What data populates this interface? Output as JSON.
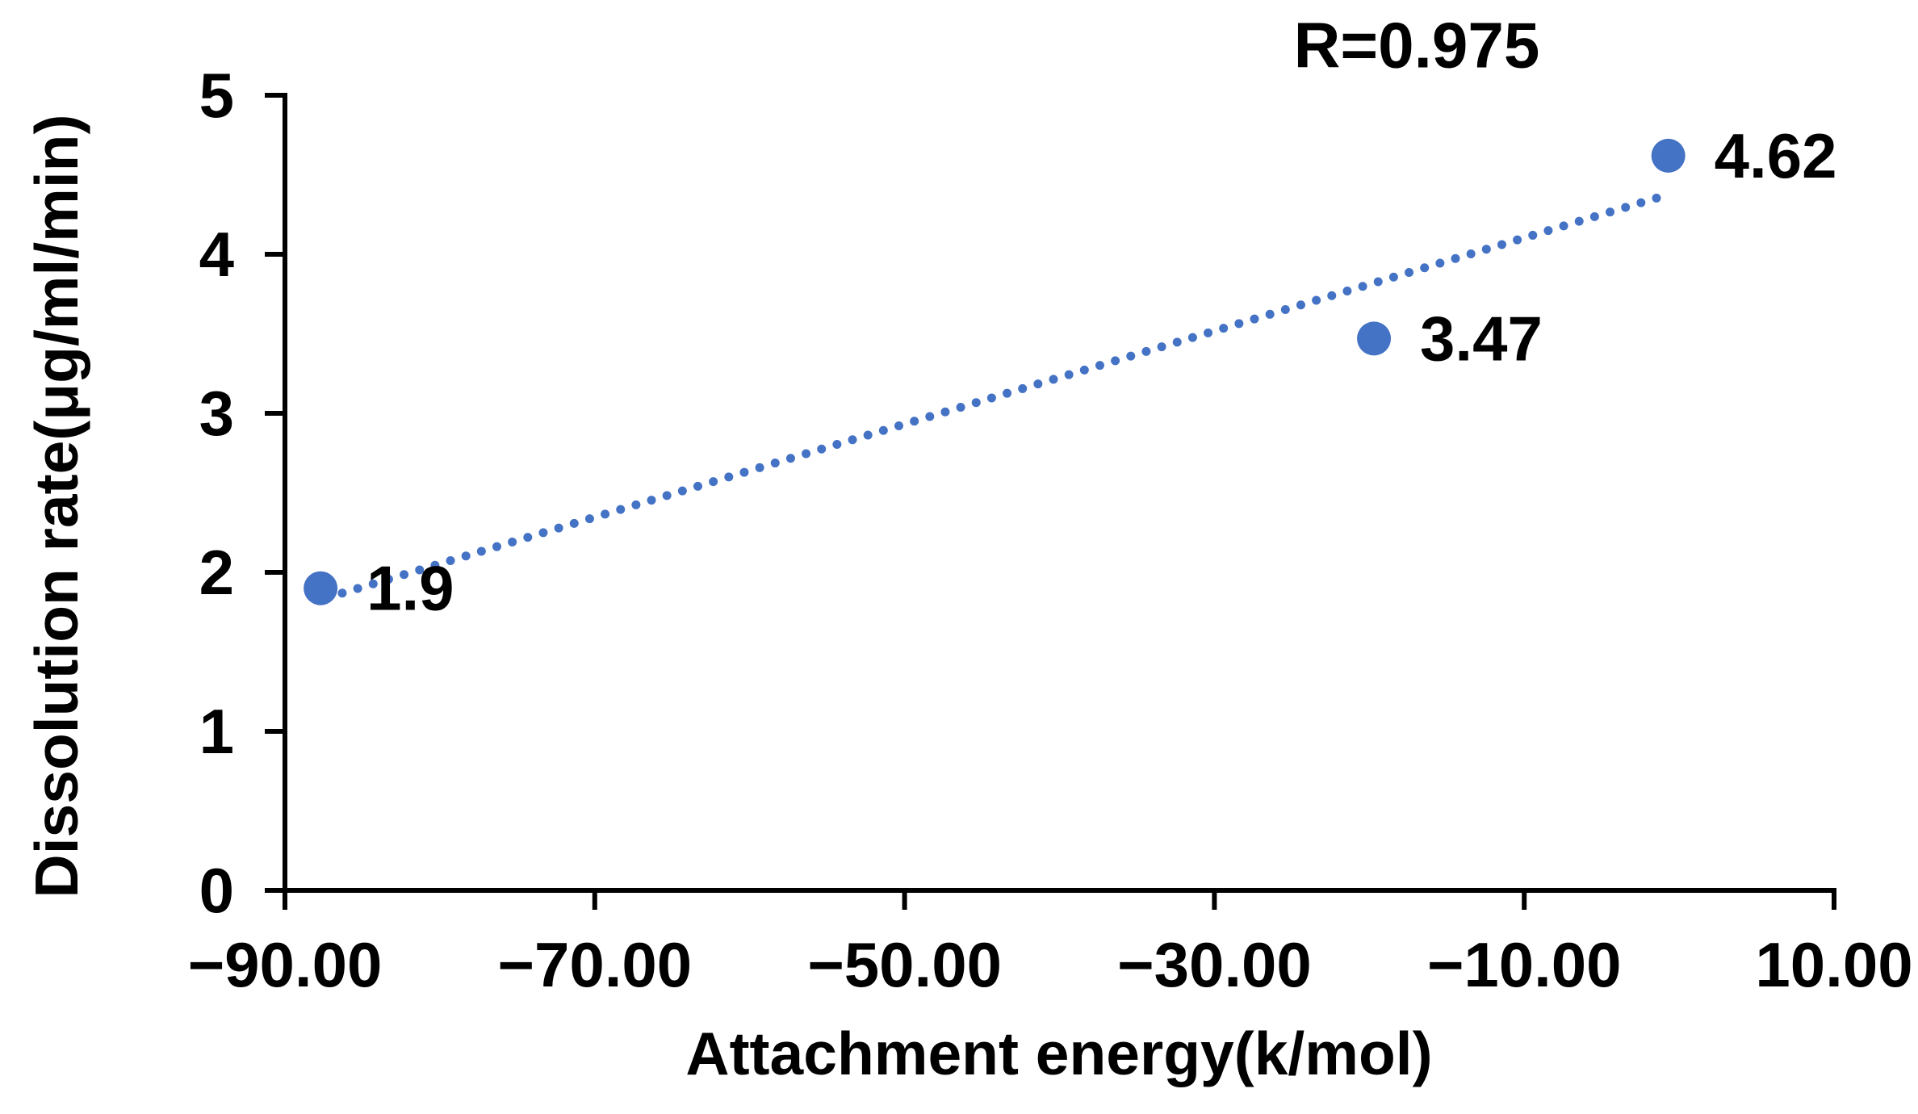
{
  "chart_data": {
    "type": "scatter",
    "title": "",
    "annotation": "R=0.975",
    "xlabel": "Attachment energy(k/mol)",
    "ylabel": "Dissolution rate(μg/ml/min)",
    "xlim": [
      -90,
      10
    ],
    "ylim": [
      0,
      5
    ],
    "grid": false,
    "legend": "none",
    "x_ticks": [
      {
        "value": -90,
        "label": "−90.00"
      },
      {
        "value": -70,
        "label": "−70.00"
      },
      {
        "value": -50,
        "label": "−50.00"
      },
      {
        "value": -30,
        "label": "−30.00"
      },
      {
        "value": -10,
        "label": "−10.00"
      },
      {
        "value": 10,
        "label": "10.00"
      }
    ],
    "y_ticks": [
      {
        "value": 0,
        "label": "0"
      },
      {
        "value": 1,
        "label": "1"
      },
      {
        "value": 2,
        "label": "2"
      },
      {
        "value": 3,
        "label": "3"
      },
      {
        "value": 4,
        "label": "4"
      },
      {
        "value": 5,
        "label": "5"
      }
    ],
    "points": [
      {
        "x": -87.7,
        "y": 1.9,
        "label": "1.9"
      },
      {
        "x": -19.7,
        "y": 3.47,
        "label": "3.47"
      },
      {
        "x": -0.7,
        "y": 4.62,
        "label": "4.62"
      }
    ],
    "trendline": {
      "style": "dotted",
      "x1": -87.3,
      "y1": 1.84,
      "x2": -0.9,
      "y2": 4.37
    },
    "colors": {
      "marker": "#4472C4",
      "trendline": "#4472C4",
      "text": "#000000",
      "axis": "#000000",
      "background": "#FFFFFF"
    }
  }
}
